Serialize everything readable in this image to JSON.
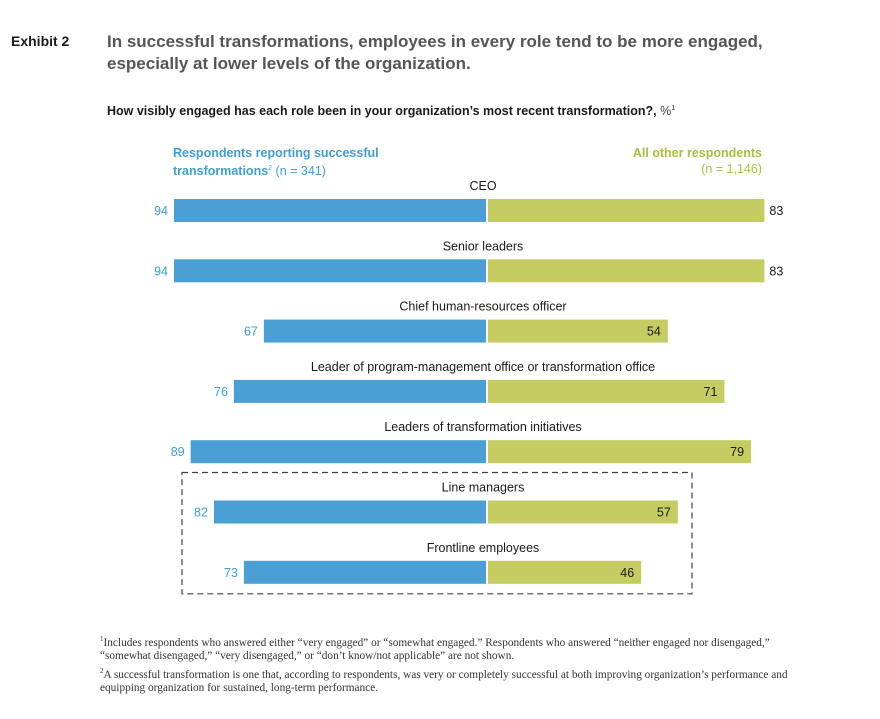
{
  "header": {
    "exhibit_label": "Exhibit 2",
    "title": "In successful transformations, employees in every role tend to be more engaged, especially at lower levels of the organization.",
    "question": "How visibly engaged has each role been in your organization’s most recent transformation?,",
    "question_footnote": "1",
    "question_unit": "%"
  },
  "legend": {
    "left_line1": "Respondents reporting successful",
    "left_line2": "transformations",
    "left_footnote": "2",
    "left_n": "(n = 341)",
    "right_line1": "All other respondents",
    "right_n": "(n = 1,146)"
  },
  "colors": {
    "successful": "#4a9fd5",
    "other": "#c5cc62",
    "successful_text": "#3d9fd6",
    "other_text": "#a9bf3e",
    "label_text": "#1a1a1a",
    "dashed_box": "#444444"
  },
  "chart_data": {
    "type": "bar",
    "orientation": "horizontal-diverging",
    "categories": [
      "CEO",
      "Senior leaders",
      "Chief human-resources officer",
      "Leader of program-management office or transformation office",
      "Leaders of transformation initiatives",
      "Line managers",
      "Frontline employees"
    ],
    "series": [
      {
        "name": "Respondents reporting successful transformations (n = 341)",
        "values": [
          94,
          94,
          67,
          76,
          89,
          82,
          73
        ]
      },
      {
        "name": "All other respondents (n = 1,146)",
        "values": [
          83,
          83,
          54,
          71,
          79,
          57,
          46
        ]
      }
    ],
    "highlighted_categories": [
      "Line managers",
      "Frontline employees"
    ],
    "xlim": [
      0,
      100
    ]
  },
  "footnotes": [
    {
      "mark": "1",
      "text": "Includes respondents who answered either “very engaged” or “somewhat engaged.” Respondents who answered “neither engaged nor disengaged,” “somewhat disengaged,” “very disengaged,” or “don’t know/not applicable” are not shown."
    },
    {
      "mark": "2",
      "text": "A successful transformation is one that, according to respondents, was very or completely successful at both improving organization’s performance and equipping organization for sustained, long-term performance."
    }
  ]
}
